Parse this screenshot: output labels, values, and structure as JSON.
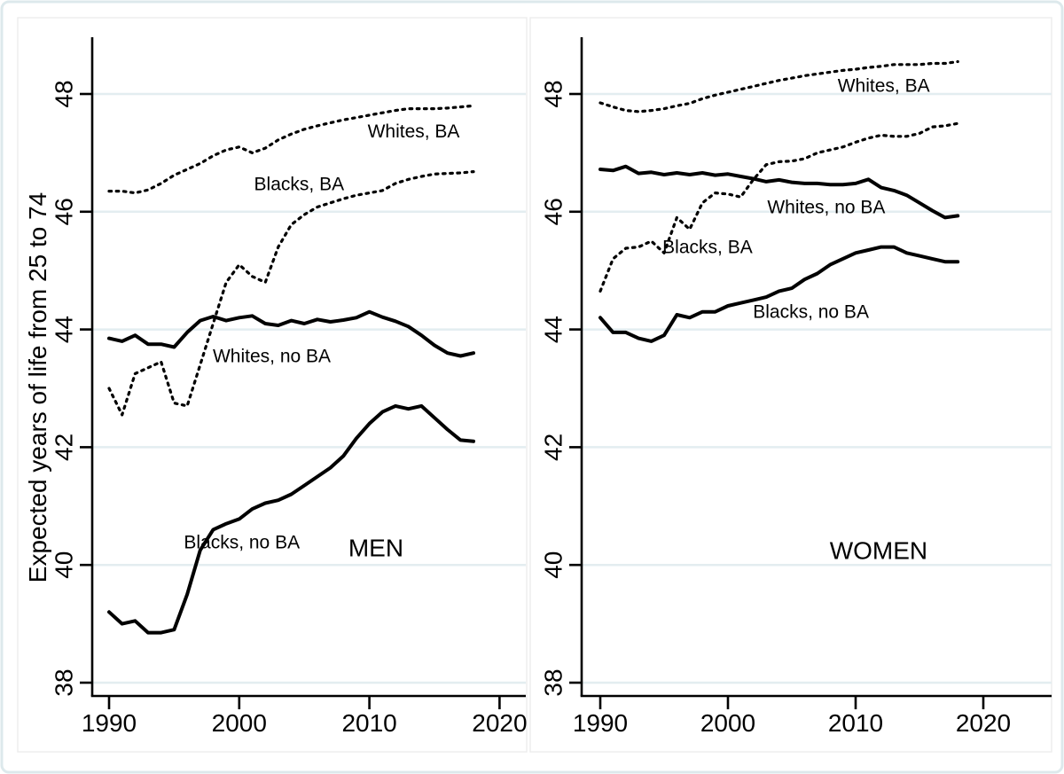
{
  "figure": {
    "ylabel": "Expected years of life from 25 to 74",
    "background_color": "#ffffff",
    "outer_border_color": "#dde9ec",
    "panel_border_color": "#ededed",
    "grid_color": "#e3edf0",
    "axis_color": "#000000",
    "line_color": "#000000"
  },
  "chart_data": [
    {
      "type": "line",
      "panel_title": "MEN",
      "xlabel": "",
      "ylabel": "Expected years of life from 25 to 74",
      "xticks": [
        1990,
        2000,
        2010,
        2020
      ],
      "yticks": [
        38,
        40,
        42,
        44,
        46,
        48
      ],
      "xlim": [
        1988.7,
        2022
      ],
      "ylim": [
        38,
        48
      ],
      "grid": "horizontal",
      "legend": "inline-annotations",
      "years": [
        1990,
        1991,
        1992,
        1993,
        1994,
        1995,
        1996,
        1997,
        1998,
        1999,
        2000,
        2001,
        2002,
        2003,
        2004,
        2005,
        2006,
        2007,
        2008,
        2009,
        2010,
        2011,
        2012,
        2013,
        2014,
        2015,
        2016,
        2017,
        2018
      ],
      "series": [
        {
          "name": "whites-ba",
          "label": "Whites, BA",
          "style": "dotted",
          "values": [
            46.35,
            46.35,
            46.32,
            46.37,
            46.48,
            46.62,
            46.72,
            46.82,
            46.95,
            47.05,
            47.1,
            47.0,
            47.08,
            47.22,
            47.32,
            47.4,
            47.46,
            47.51,
            47.56,
            47.6,
            47.64,
            47.68,
            47.72,
            47.75,
            47.75,
            47.75,
            47.76,
            47.78,
            47.8
          ]
        },
        {
          "name": "blacks-ba",
          "label": "Blacks, BA",
          "style": "dotted",
          "values": [
            43.0,
            42.55,
            43.25,
            43.35,
            43.45,
            42.75,
            42.7,
            43.4,
            44.1,
            44.8,
            45.1,
            44.9,
            44.8,
            45.4,
            45.78,
            45.95,
            46.08,
            46.15,
            46.22,
            46.28,
            46.32,
            46.36,
            46.48,
            46.55,
            46.6,
            46.64,
            46.65,
            46.66,
            46.68
          ]
        },
        {
          "name": "whites-no-ba",
          "label": "Whites, no BA",
          "style": "solid",
          "values": [
            43.85,
            43.8,
            43.9,
            43.75,
            43.75,
            43.7,
            43.95,
            44.15,
            44.22,
            44.15,
            44.2,
            44.23,
            44.1,
            44.07,
            44.15,
            44.1,
            44.17,
            44.13,
            44.16,
            44.2,
            44.3,
            44.21,
            44.14,
            44.05,
            43.9,
            43.73,
            43.6,
            43.55,
            43.6
          ]
        },
        {
          "name": "blacks-no-ba",
          "label": "Blacks, no BA",
          "style": "solid",
          "values": [
            39.2,
            39.0,
            39.05,
            38.85,
            38.85,
            38.9,
            39.5,
            40.25,
            40.6,
            40.7,
            40.78,
            40.95,
            41.05,
            41.1,
            41.2,
            41.35,
            41.5,
            41.65,
            41.85,
            42.15,
            42.4,
            42.6,
            42.7,
            42.65,
            42.7,
            42.5,
            42.3,
            42.12,
            42.1
          ]
        }
      ],
      "annotations": [
        {
          "text": "Whites, BA",
          "x": 2013.4,
          "y": 47.37,
          "kind": "series-label"
        },
        {
          "text": "Blacks, BA",
          "x": 2004.6,
          "y": 46.47,
          "kind": "series-label"
        },
        {
          "text": "Whites, no BA",
          "x": 2002.5,
          "y": 43.55,
          "kind": "series-label"
        },
        {
          "text": "Blacks, no BA",
          "x": 2000.2,
          "y": 40.39,
          "kind": "series-label"
        },
        {
          "text": "MEN",
          "x": 2010.5,
          "y": 40.3,
          "kind": "panel-title"
        }
      ]
    },
    {
      "type": "line",
      "panel_title": "WOMEN",
      "xlabel": "",
      "ylabel": "",
      "xticks": [
        1990,
        2000,
        2010,
        2020
      ],
      "yticks": [
        38,
        40,
        42,
        44,
        46,
        48
      ],
      "xlim": [
        1988.5,
        2022
      ],
      "ylim": [
        38,
        48
      ],
      "grid": "horizontal",
      "legend": "inline-annotations",
      "years": [
        1990,
        1991,
        1992,
        1993,
        1994,
        1995,
        1996,
        1997,
        1998,
        1999,
        2000,
        2001,
        2002,
        2003,
        2004,
        2005,
        2006,
        2007,
        2008,
        2009,
        2010,
        2011,
        2012,
        2013,
        2014,
        2015,
        2016,
        2017,
        2018
      ],
      "series": [
        {
          "name": "whites-ba",
          "label": "Whites, BA",
          "style": "dotted",
          "values": [
            47.85,
            47.78,
            47.72,
            47.7,
            47.72,
            47.75,
            47.8,
            47.84,
            47.92,
            47.98,
            48.03,
            48.08,
            48.13,
            48.18,
            48.23,
            48.27,
            48.31,
            48.34,
            48.37,
            48.4,
            48.42,
            48.45,
            48.47,
            48.5,
            48.5,
            48.5,
            48.52,
            48.52,
            48.55
          ]
        },
        {
          "name": "blacks-ba",
          "label": "Blacks, BA",
          "style": "dotted",
          "values": [
            44.65,
            45.2,
            45.38,
            45.4,
            45.5,
            45.3,
            45.9,
            45.7,
            46.15,
            46.32,
            46.3,
            46.25,
            46.55,
            46.8,
            46.85,
            46.86,
            46.9,
            47.0,
            47.05,
            47.1,
            47.18,
            47.25,
            47.3,
            47.28,
            47.28,
            47.33,
            47.44,
            47.46,
            47.5
          ]
        },
        {
          "name": "whites-no-ba",
          "label": "Whites, no BA",
          "style": "solid",
          "values": [
            46.72,
            46.7,
            46.77,
            46.65,
            46.67,
            46.63,
            46.66,
            46.63,
            46.66,
            46.62,
            46.64,
            46.6,
            46.56,
            46.51,
            46.54,
            46.5,
            46.48,
            46.48,
            46.46,
            46.46,
            46.48,
            46.55,
            46.41,
            46.36,
            46.28,
            46.15,
            46.02,
            45.9,
            45.93
          ]
        },
        {
          "name": "blacks-no-ba",
          "label": "Blacks, no BA",
          "style": "solid",
          "values": [
            44.2,
            43.95,
            43.95,
            43.85,
            43.8,
            43.9,
            44.25,
            44.2,
            44.3,
            44.3,
            44.4,
            44.45,
            44.5,
            44.55,
            44.65,
            44.7,
            44.85,
            44.95,
            45.1,
            45.2,
            45.3,
            45.35,
            45.4,
            45.4,
            45.3,
            45.25,
            45.2,
            45.15,
            45.15
          ]
        }
      ],
      "annotations": [
        {
          "text": "Whites, BA",
          "x": 2012.2,
          "y": 48.14,
          "kind": "series-label"
        },
        {
          "text": "Whites, no BA",
          "x": 2007.7,
          "y": 46.08,
          "kind": "series-label"
        },
        {
          "text": "Blacks, BA",
          "x": 1998.4,
          "y": 45.4,
          "kind": "series-label"
        },
        {
          "text": "Blacks, no BA",
          "x": 2006.5,
          "y": 44.3,
          "kind": "series-label"
        },
        {
          "text": "WOMEN",
          "x": 2011.8,
          "y": 40.25,
          "kind": "panel-title"
        }
      ]
    }
  ]
}
